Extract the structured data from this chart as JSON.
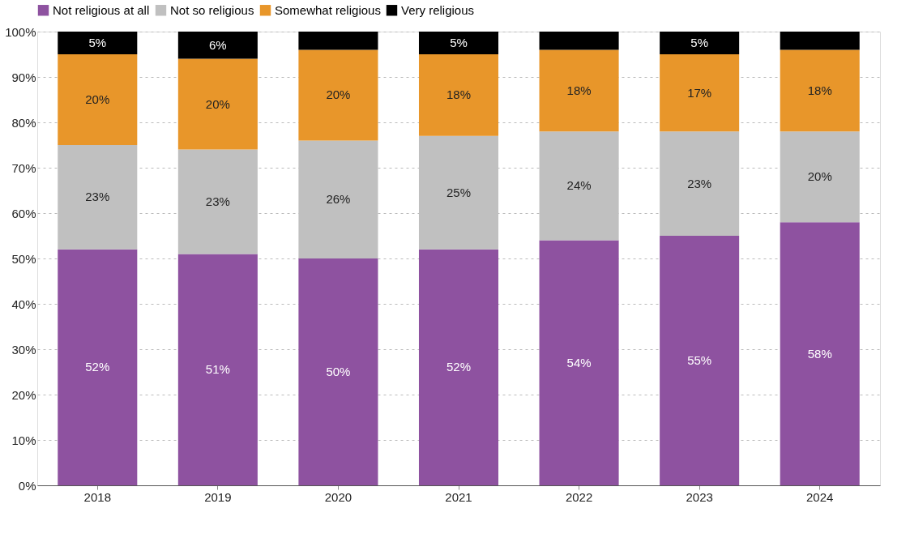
{
  "chart_data": {
    "type": "bar",
    "stacked": true,
    "categories": [
      "2018",
      "2019",
      "2020",
      "2021",
      "2022",
      "2023",
      "2024"
    ],
    "series": [
      {
        "name": "Not religious at all",
        "color": "#8e52a0",
        "values": [
          52,
          51,
          50,
          52,
          54,
          55,
          58
        ],
        "value_labels": [
          "52%",
          "51%",
          "50%",
          "52%",
          "54%",
          "55%",
          "58%"
        ]
      },
      {
        "name": "Not so religious",
        "color": "#c0c0c0",
        "values": [
          23,
          23,
          26,
          25,
          24,
          23,
          20
        ],
        "value_labels": [
          "23%",
          "23%",
          "26%",
          "25%",
          "24%",
          "23%",
          "20%"
        ]
      },
      {
        "name": "Somewhat religious",
        "color": "#e8962a",
        "values": [
          20,
          20,
          20,
          18,
          18,
          17,
          18
        ],
        "value_labels": [
          "20%",
          "20%",
          "20%",
          "18%",
          "18%",
          "17%",
          "18%"
        ]
      },
      {
        "name": "Very religious",
        "color": "#000000",
        "values": [
          5,
          6,
          4,
          5,
          4,
          5,
          4
        ],
        "value_labels": [
          "5%",
          "6%",
          null,
          "5%",
          null,
          "5%",
          null
        ]
      }
    ],
    "ylim": [
      0,
      100
    ],
    "yticks": [
      {
        "value": 0,
        "label": "0%"
      },
      {
        "value": 10,
        "label": "10%"
      },
      {
        "value": 20,
        "label": "20%"
      },
      {
        "value": 30,
        "label": "30%"
      },
      {
        "value": 40,
        "label": "40%"
      },
      {
        "value": 50,
        "label": "50%"
      },
      {
        "value": 60,
        "label": "60%"
      },
      {
        "value": 70,
        "label": "70%"
      },
      {
        "value": 80,
        "label": "80%"
      },
      {
        "value": 90,
        "label": "90%"
      },
      {
        "value": 100,
        "label": "100%"
      }
    ],
    "grid": "y",
    "legend": "top"
  }
}
